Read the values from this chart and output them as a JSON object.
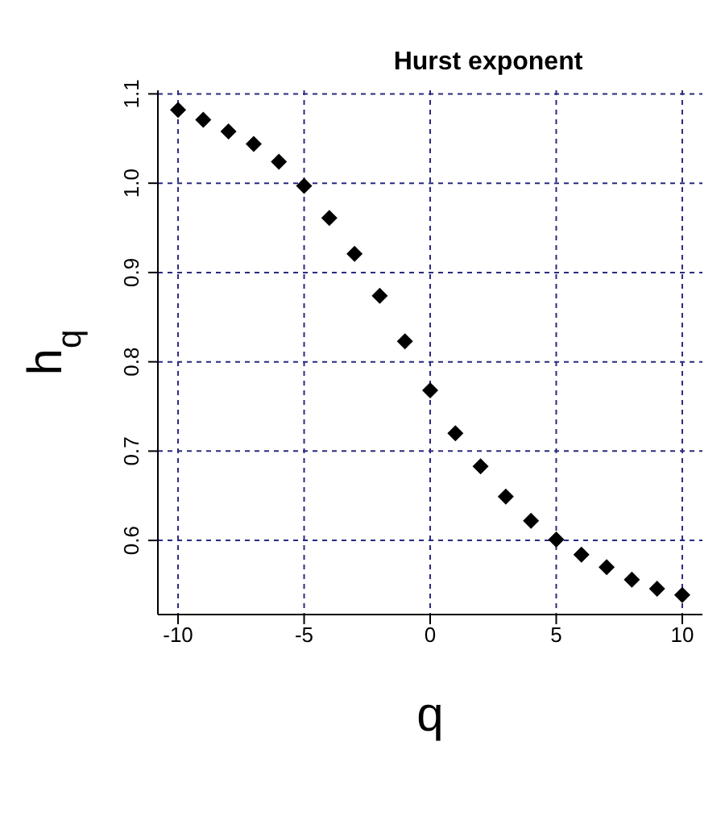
{
  "chart_data": {
    "type": "scatter",
    "title": "Hurst exponent",
    "xlabel": "q",
    "ylabel": "h$_{q}$",
    "x": [
      -10,
      -9,
      -8,
      -7,
      -6,
      -5,
      -4,
      -3,
      -2,
      -1,
      0,
      1,
      2,
      3,
      4,
      5,
      6,
      7,
      8,
      9,
      10
    ],
    "series": [
      {
        "color": "#000000",
        "values": [
          1.082,
          1.071,
          1.058,
          1.044,
          1.024,
          0.997,
          0.961,
          0.921,
          0.874,
          0.823,
          0.768,
          0.72,
          0.683,
          0.649,
          0.622,
          0.601,
          0.584,
          0.57,
          0.556,
          0.546,
          0.539
        ]
      }
    ],
    "xlim": [
      -10.8,
      10.8
    ],
    "ylim": [
      0.517,
      1.104
    ],
    "xticks": [
      -10,
      -5,
      0,
      5,
      10
    ],
    "yticks": [
      0.6,
      0.7,
      0.8,
      0.9,
      {
        "value": 1,
        "label": "1.0"
      },
      1.1
    ],
    "grid": true,
    "marker": "diamond"
  }
}
